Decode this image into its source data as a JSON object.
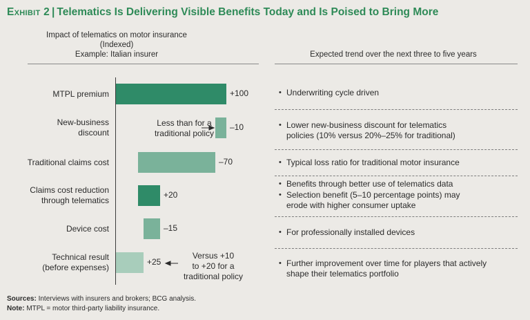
{
  "header": {
    "exhibit": "Exhibit 2",
    "separator": "|",
    "title": "Telematics Is Delivering Visible Benefits Today and Is Poised to Bring More"
  },
  "left_header": {
    "line1": "Impact of telematics on motor insurance",
    "line2": "(Indexed)",
    "line3": "Example: Italian insurer"
  },
  "right_header": "Expected trend over the next three to five years",
  "annotations": {
    "new_business_l1": "Less than for a",
    "new_business_l2": "traditional policy",
    "technical_l1": "Versus +10",
    "technical_l2": "to +20 for a",
    "technical_l3": "traditional policy"
  },
  "bullets": [
    [
      "Underwriting cycle driven"
    ],
    [
      "Lower new-business discount for telematics",
      "policies (10% versus 20%–25% for traditional)"
    ],
    [
      "Typical loss ratio for traditional motor insurance"
    ],
    [
      "Benefits through better use of telematics data"
    ],
    [
      "Selection benefit (5–10 percentage points) may",
      "erode with higher consumer uptake"
    ],
    [
      "For professionally installed devices"
    ],
    [
      "Further improvement over time for players that actively",
      "shape their telematics portfolio"
    ]
  ],
  "footnotes": {
    "sources_label": "Sources:",
    "sources_text": " Interviews with insurers and brokers; BCG analysis.",
    "note_label": "Note:",
    "note_text": " MTPL = motor third-party liability insurance."
  },
  "chart_data": {
    "type": "bar",
    "subtype": "waterfall",
    "categories": [
      [
        "MTPL premium"
      ],
      [
        "New-business",
        "discount"
      ],
      [
        "Traditional claims cost"
      ],
      [
        "Claims cost reduction",
        "through telematics"
      ],
      [
        "Device cost"
      ],
      [
        "Technical result",
        "(before expenses)"
      ]
    ],
    "values": [
      100,
      -10,
      -70,
      20,
      -15,
      25
    ],
    "value_labels": [
      "+100",
      "–10",
      "–70",
      "+20",
      "–15",
      "+25"
    ],
    "bar_kinds": [
      "total",
      "delta",
      "delta",
      "delta",
      "delta",
      "total"
    ],
    "xlim": [
      0,
      100
    ],
    "colors": {
      "primary": "#2f8b68",
      "decrease": "#7ab29a",
      "increase": "#2f8b68",
      "result": "#a8cdbb",
      "title": "#2e8a57"
    }
  }
}
